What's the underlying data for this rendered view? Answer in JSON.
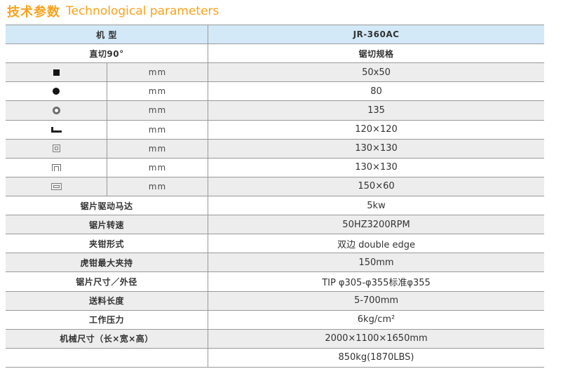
{
  "title": {
    "zh": "技术参数",
    "en": "Technological parameters"
  },
  "colors": {
    "accent_orange": "#F9A21C",
    "header_blue": "#D3E9F8",
    "row_gray": "#EDEDED",
    "border_gray": "#999999",
    "text_dark": "#333333"
  },
  "table": {
    "rows": [
      {
        "type": "header",
        "label": "机 型",
        "value": "JR-360AC"
      },
      {
        "type": "section",
        "label": "直切90°",
        "value": "锯切规格"
      },
      {
        "type": "icon",
        "icon": "solid-square-icon",
        "unit": "mm",
        "value": "50x50"
      },
      {
        "type": "icon",
        "icon": "solid-circle-icon",
        "unit": "mm",
        "value": "80"
      },
      {
        "type": "icon",
        "icon": "pipe-section-icon",
        "unit": "mm",
        "value": "135"
      },
      {
        "type": "icon",
        "icon": "angle-section-icon",
        "unit": "mm",
        "value": "120×120"
      },
      {
        "type": "icon",
        "icon": "square-tube-icon",
        "unit": "mm",
        "value": "130×130"
      },
      {
        "type": "icon",
        "icon": "channel-section-icon",
        "unit": "mm",
        "value": "130×130"
      },
      {
        "type": "icon",
        "icon": "rect-tube-icon",
        "unit": "mm",
        "value": "150×60"
      },
      {
        "type": "plain",
        "label": "锯片驱动马达",
        "value": "5kw"
      },
      {
        "type": "plain",
        "label": "锯片转速",
        "value": "50HZ3200RPM"
      },
      {
        "type": "plain",
        "label": "夹钳形式",
        "value": "双边 double edge"
      },
      {
        "type": "plain",
        "label": "虎钳最大夹持",
        "value": "150mm"
      },
      {
        "type": "plain",
        "label": "锯片尺寸／外径",
        "value": "TIP φ305-φ355标准φ355"
      },
      {
        "type": "plain",
        "label": "送料长度",
        "value": "5-700mm"
      },
      {
        "type": "plain",
        "label": "工作压力",
        "value": "6kg/cm²"
      },
      {
        "type": "plain",
        "label": "机械尺寸（长×宽×高）",
        "value": "2000×1100×1650mm"
      },
      {
        "type": "plain",
        "label": "",
        "value": "850kg(1870LBS)"
      }
    ]
  }
}
